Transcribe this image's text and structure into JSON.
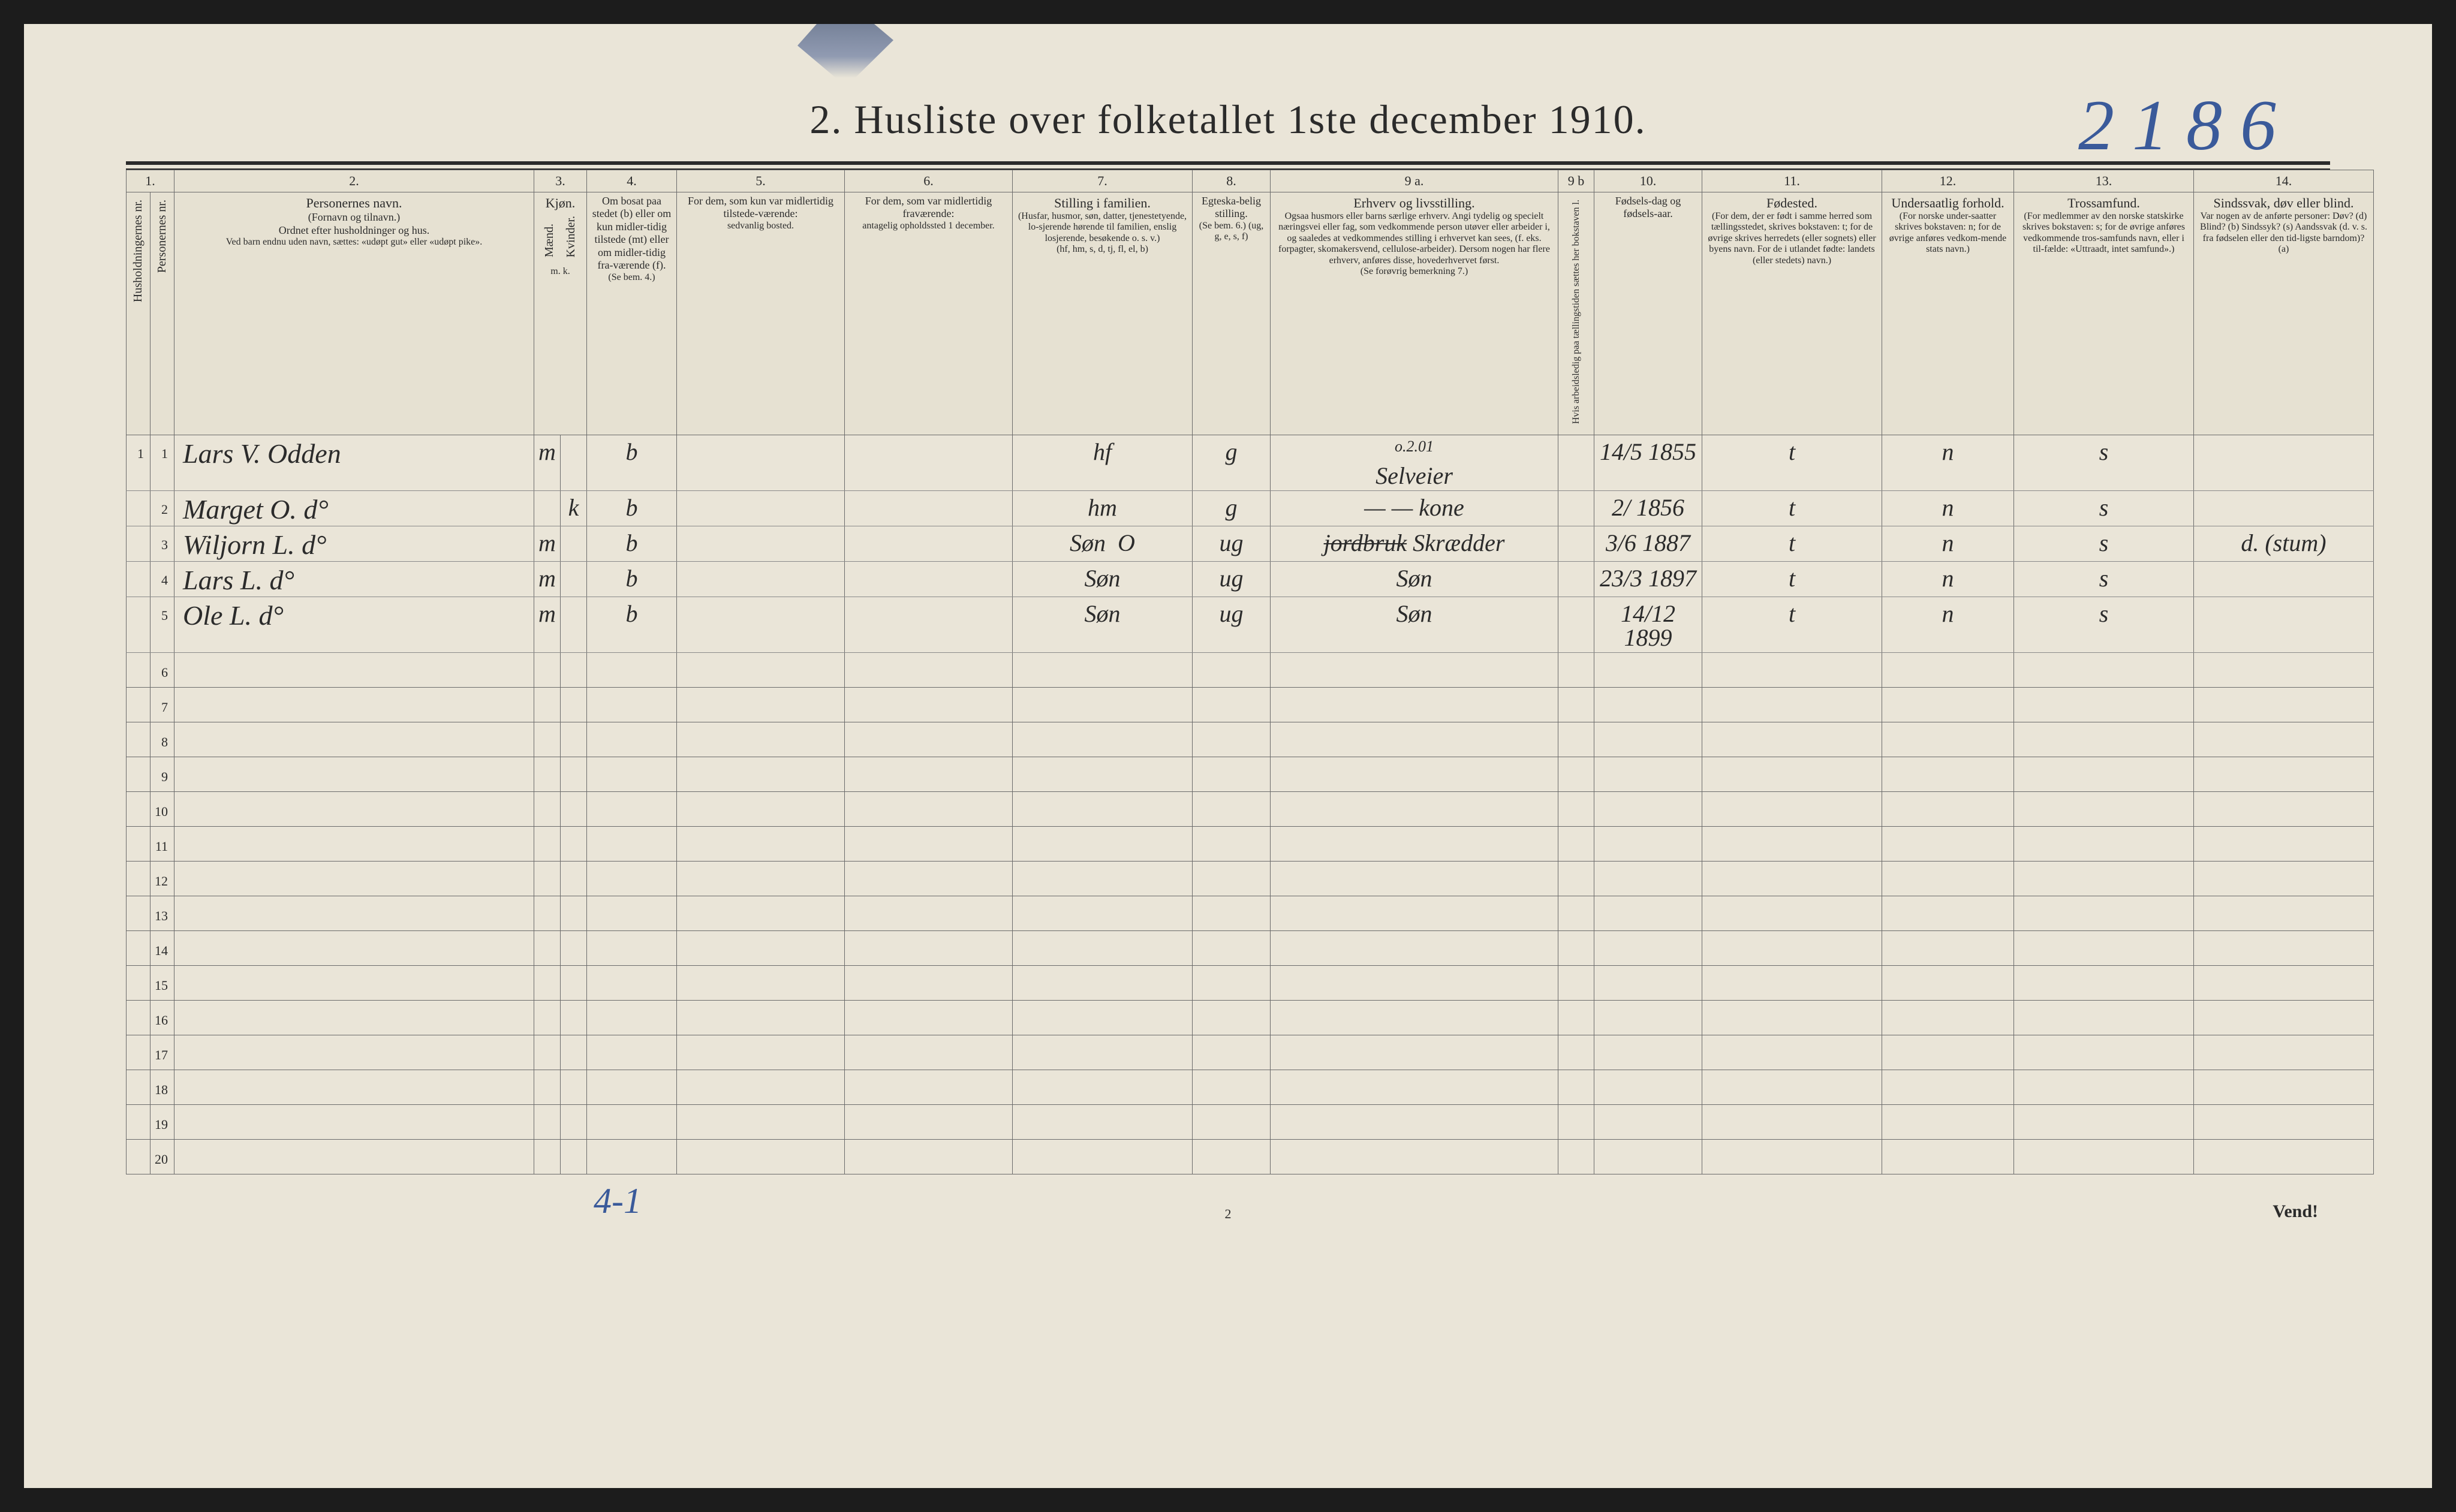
{
  "title": "2.  Husliste over folketallet 1ste december 1910.",
  "topright_handwritten": "2186",
  "columns_numbered": [
    "1.",
    "2.",
    "3.",
    "4.",
    "5.",
    "6.",
    "7.",
    "8.",
    "9 a.",
    "9 b",
    "10.",
    "11.",
    "12.",
    "13.",
    "14."
  ],
  "headers": {
    "c1a": "Husholdningernes nr.",
    "c1b": "Personernes nr.",
    "c2_title": "Personernes navn.",
    "c2_sub1": "(Fornavn og tilnavn.)",
    "c2_sub2": "Ordnet efter husholdninger og hus.",
    "c2_sub3": "Ved barn endnu uden navn, sættes: «udøpt gut» eller «udøpt pike».",
    "c3_title": "Kjøn.",
    "c3_m": "Mænd.",
    "c3_k": "Kvinder.",
    "c3_foot": "m.  k.",
    "c4_title": "Om bosat paa stedet (b) eller om kun midler-tidig tilstede (mt) eller om midler-tidig fra-værende (f).",
    "c4_foot": "(Se bem. 4.)",
    "c5_title": "For dem, som kun var midlertidig tilstede-værende:",
    "c5_sub": "sedvanlig bosted.",
    "c6_title": "For dem, som var midlertidig fraværende:",
    "c6_sub": "antagelig opholdssted 1 december.",
    "c7_title": "Stilling i familien.",
    "c7_sub1": "(Husfar, husmor, søn, datter, tjenestetyende, lo-sjerende hørende til familien, enslig losjerende, besøkende o. s. v.)",
    "c7_sub2": "(hf, hm, s, d, tj, fl, el, b)",
    "c8_title": "Egteska-belig stilling.",
    "c8_sub": "(Se bem. 6.) (ug, g, e, s, f)",
    "c9a_title": "Erhverv og livsstilling.",
    "c9a_sub": "Ogsaa husmors eller barns særlige erhverv. Angi tydelig og specielt næringsvei eller fag, som vedkommende person utøver eller arbeider i, og saaledes at vedkommendes stilling i erhvervet kan sees, (f. eks. forpagter, skomakersvend, cellulose-arbeider). Dersom nogen har flere erhverv, anføres disse, hovederhvervet først.",
    "c9a_foot": "(Se forøvrig bemerkning 7.)",
    "c9b_title": "Hvis arbeidsledig paa tællingstiden sættes her bokstaven l.",
    "c10_title": "Fødsels-dag og fødsels-aar.",
    "c11_title": "Fødested.",
    "c11_sub": "(For dem, der er født i samme herred som tællingsstedet, skrives bokstaven: t; for de øvrige skrives herredets (eller sognets) eller byens navn. For de i utlandet fødte: landets (eller stedets) navn.)",
    "c12_title": "Undersaatlig forhold.",
    "c12_sub": "(For norske under-saatter skrives bokstaven: n; for de øvrige anføres vedkom-mende stats navn.)",
    "c13_title": "Trossamfund.",
    "c13_sub": "(For medlemmer av den norske statskirke skrives bokstaven: s; for de øvrige anføres vedkommende tros-samfunds navn, eller i til-fælde: «Uttraadt, intet samfund».)",
    "c14_title": "Sindssvak, døv eller blind.",
    "c14_sub": "Var nogen av de anførte personer: Døv? (d) Blind? (b) Sindssyk? (s) Aandssvak (d. v. s. fra fødselen eller den tid-ligste barndom)? (a)"
  },
  "rows": [
    {
      "n": "1",
      "name": "Lars V. Odden",
      "sex": "m",
      "res": "b",
      "c7": "hf",
      "c8": "g",
      "c9_above": "o.2.01",
      "c9": "Selveier",
      "c10": "14/5 1855",
      "c11": "t",
      "c12": "n",
      "c13": "s",
      "c14": ""
    },
    {
      "n": "2",
      "name": "Marget O.   d°",
      "sex": "k",
      "res": "b",
      "c7": "hm",
      "c8": "g",
      "c9": "—  — kone",
      "c10": "2/ 1856",
      "c11": "t",
      "c12": "n",
      "c13": "s",
      "c14": ""
    },
    {
      "n": "3",
      "name": "Wiljorn L.   d°",
      "sex": "m",
      "res": "b",
      "c7": "Søn",
      "c7_extra": "O",
      "c8": "ug",
      "c9_strike": "jordbruk",
      "c9": "Skrædder",
      "c10": "3/6 1887",
      "c11": "t",
      "c12": "n",
      "c13": "s",
      "c14": "d. (stum)"
    },
    {
      "n": "4",
      "name": "Lars   L.   d°",
      "sex": "m",
      "res": "b",
      "c7": "Søn",
      "c8": "ug",
      "c9": "Søn",
      "c10": "23/3 1897",
      "c11": "t",
      "c12": "n",
      "c13": "s",
      "c14": ""
    },
    {
      "n": "5",
      "name": "Ole   L.   d°",
      "sex": "m",
      "res": "b",
      "c7": "Søn",
      "c8": "ug",
      "c9": "Søn",
      "c10": "14/12 1899",
      "c11": "t",
      "c12": "n",
      "c13": "s",
      "c14": ""
    }
  ],
  "empty_rows": [
    "6",
    "7",
    "8",
    "9",
    "10",
    "11",
    "12",
    "13",
    "14",
    "15",
    "16",
    "17",
    "18",
    "19",
    "20"
  ],
  "footer_left_hand": "4-1",
  "footer_center": "2",
  "footer_right": "Vend!",
  "colors": {
    "paper": "#eae5d8",
    "ink": "#2b2b2b",
    "rule": "#6b6b6b",
    "hand_blue": "#3a5a9a"
  }
}
